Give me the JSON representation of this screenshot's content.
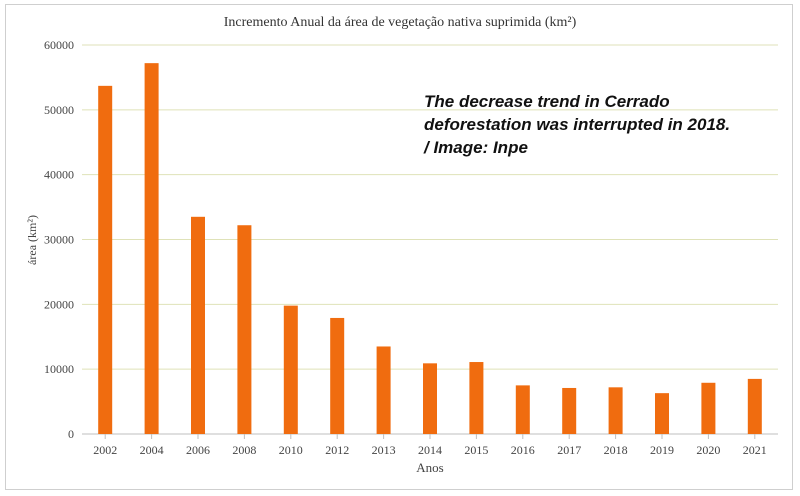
{
  "chart_data": {
    "type": "bar",
    "title": "Incremento Anual da área de vegetação nativa suprimida (km²)",
    "xlabel": "Anos",
    "ylabel": "área (km²)",
    "categories": [
      "2002",
      "2004",
      "2006",
      "2008",
      "2010",
      "2012",
      "2013",
      "2014",
      "2015",
      "2016",
      "2017",
      "2018",
      "2019",
      "2020",
      "2021"
    ],
    "values": [
      53700,
      57200,
      33500,
      32200,
      19800,
      17900,
      13500,
      10900,
      11100,
      7500,
      7100,
      7200,
      6300,
      7900,
      8500
    ],
    "ylim": [
      0,
      60000
    ],
    "yticks": [
      "0",
      "10000",
      "20000",
      "30000",
      "40000",
      "50000",
      "60000"
    ],
    "grid": true,
    "colors": {
      "bar": "#f06c0f",
      "grid": "#dfe2b8",
      "axis": "#bfbfbf"
    }
  },
  "annotation": {
    "lines": [
      "The decrease trend in Cerrado",
      "deforestation was interrupted in 2018.",
      "/ Image: Inpe"
    ]
  }
}
